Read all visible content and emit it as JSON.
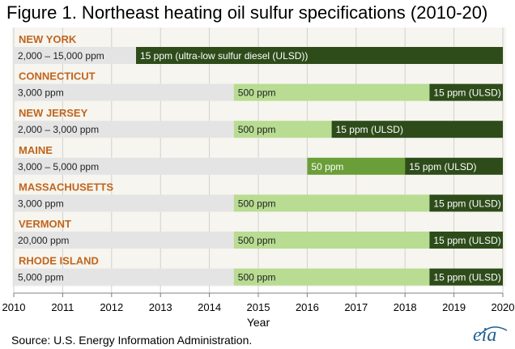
{
  "title": "Figure 1. Northeast heating oil sulfur specifications (2010-20)",
  "source": "Source: U.S. Energy Information Administration.",
  "logo_text": "eia",
  "colors": {
    "panel": "#f7f5ef",
    "state_label": "#c0651d",
    "baseline": "#e4e4e4",
    "ppm_500": "#b8dc92",
    "ppm_50": "#6a9e38",
    "ulsd": "#2d4c1a",
    "logo": "#1f5f91"
  },
  "chart_data": {
    "type": "gantt",
    "title": "Figure 1. Northeast heating oil sulfur specifications (2010-20)",
    "xlabel": "Year",
    "ylabel": "",
    "xlim": [
      2010,
      2020
    ],
    "x_ticks": [
      "2010",
      "2011",
      "2012",
      "2013",
      "2014",
      "2015",
      "2016",
      "2017",
      "2018",
      "2019",
      "2020"
    ],
    "grid": true,
    "legend": "none",
    "states": [
      {
        "name": "NEW YORK",
        "segments": [
          {
            "label": "2,000 – 15,000 ppm",
            "start": 2010,
            "end": 2012.5,
            "level": "baseline"
          },
          {
            "label": "15 ppm (ultra-low  sulfur diesel (ULSD))",
            "start": 2012.5,
            "end": 2020,
            "level": "ulsd"
          }
        ]
      },
      {
        "name": "CONNECTICUT",
        "segments": [
          {
            "label": "3,000 ppm",
            "start": 2010,
            "end": 2014.5,
            "level": "baseline"
          },
          {
            "label": "500 ppm",
            "start": 2014.5,
            "end": 2018.5,
            "level": "ppm_500"
          },
          {
            "label": "15 ppm (ULSD)",
            "start": 2018.5,
            "end": 2020,
            "level": "ulsd"
          }
        ]
      },
      {
        "name": "NEW JERSEY",
        "segments": [
          {
            "label": "2,000 – 3,000 ppm",
            "start": 2010,
            "end": 2014.5,
            "level": "baseline"
          },
          {
            "label": "500 ppm",
            "start": 2014.5,
            "end": 2016.5,
            "level": "ppm_500"
          },
          {
            "label": "15 ppm (ULSD)",
            "start": 2016.5,
            "end": 2020,
            "level": "ulsd"
          }
        ]
      },
      {
        "name": "MAINE",
        "segments": [
          {
            "label": "3,000 – 5,000 ppm",
            "start": 2010,
            "end": 2016,
            "level": "baseline"
          },
          {
            "label": "50 ppm",
            "start": 2016,
            "end": 2018,
            "level": "ppm_50"
          },
          {
            "label": "15 ppm (ULSD)",
            "start": 2018,
            "end": 2020,
            "level": "ulsd"
          }
        ]
      },
      {
        "name": "MASSACHUSETTS",
        "segments": [
          {
            "label": "3,000 ppm",
            "start": 2010,
            "end": 2014.5,
            "level": "baseline"
          },
          {
            "label": "500 ppm",
            "start": 2014.5,
            "end": 2018.5,
            "level": "ppm_500"
          },
          {
            "label": "15 ppm (ULSD)",
            "start": 2018.5,
            "end": 2020,
            "level": "ulsd"
          }
        ]
      },
      {
        "name": "VERMONT",
        "segments": [
          {
            "label": "20,000 ppm",
            "start": 2010,
            "end": 2014.5,
            "level": "baseline"
          },
          {
            "label": "500 ppm",
            "start": 2014.5,
            "end": 2018.5,
            "level": "ppm_500"
          },
          {
            "label": "15 ppm (ULSD)",
            "start": 2018.5,
            "end": 2020,
            "level": "ulsd"
          }
        ]
      },
      {
        "name": "RHODE ISLAND",
        "segments": [
          {
            "label": "5,000 ppm",
            "start": 2010,
            "end": 2014.5,
            "level": "baseline"
          },
          {
            "label": "500 ppm",
            "start": 2014.5,
            "end": 2018.5,
            "level": "ppm_500"
          },
          {
            "label": "15 ppm (ULSD)",
            "start": 2018.5,
            "end": 2020,
            "level": "ulsd"
          }
        ]
      }
    ]
  }
}
